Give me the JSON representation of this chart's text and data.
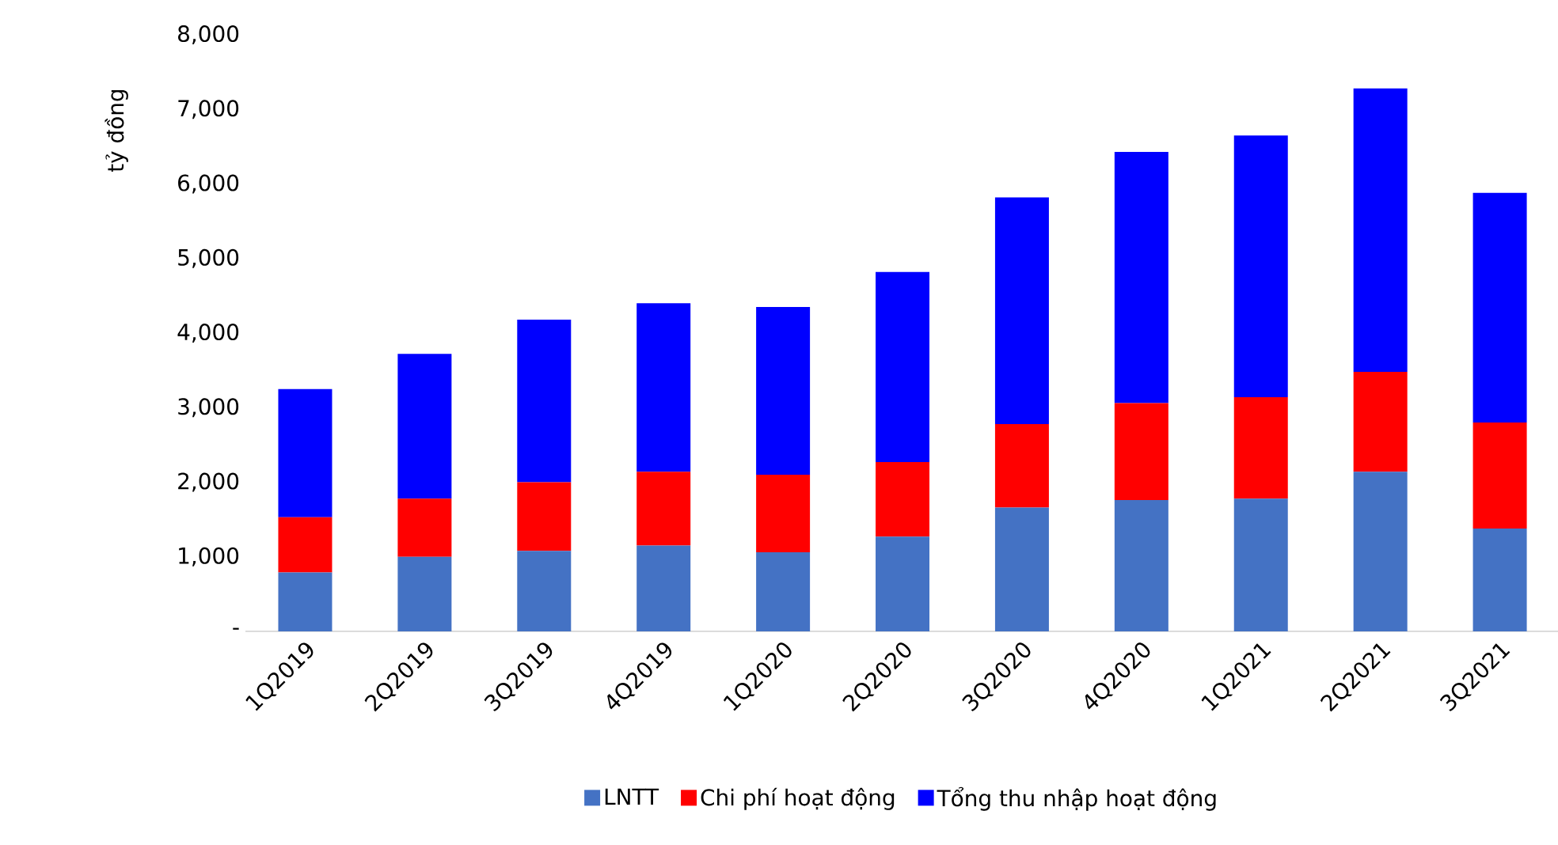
{
  "chart_data": {
    "type": "bar",
    "stacked": true,
    "ylabel": "tỷ đồng",
    "categories": [
      "1Q2019",
      "2Q2019",
      "3Q2019",
      "4Q2019",
      "1Q2020",
      "2Q2020",
      "3Q2020",
      "4Q2020",
      "1Q2021",
      "2Q2021",
      "3Q2021"
    ],
    "series": [
      {
        "name": "LNTT",
        "color": "#4472c4",
        "values": [
          790,
          1000,
          1080,
          1150,
          1060,
          1270,
          1660,
          1760,
          1780,
          2140,
          1380
        ]
      },
      {
        "name": "Chi phí hoạt động",
        "color": "#ff0000",
        "values": [
          740,
          780,
          920,
          990,
          1040,
          1000,
          1120,
          1300,
          1360,
          1340,
          1420
        ]
      },
      {
        "name": "Tổng thu nhập hoạt động",
        "color": "#0000ff",
        "values": [
          1720,
          1940,
          2180,
          2260,
          2250,
          2550,
          3040,
          3370,
          3510,
          3800,
          3080
        ]
      }
    ],
    "ylim": [
      0,
      8000
    ],
    "yticks": [
      {
        "value": 0,
        "label": "-"
      },
      {
        "value": 1000,
        "label": "1,000"
      },
      {
        "value": 2000,
        "label": "2,000"
      },
      {
        "value": 3000,
        "label": "3,000"
      },
      {
        "value": 4000,
        "label": "4,000"
      },
      {
        "value": 5000,
        "label": "5,000"
      },
      {
        "value": 6000,
        "label": "6,000"
      },
      {
        "value": 7000,
        "label": "7,000"
      },
      {
        "value": 8000,
        "label": "8,000"
      }
    ],
    "grid": false,
    "legend": "bottom"
  }
}
